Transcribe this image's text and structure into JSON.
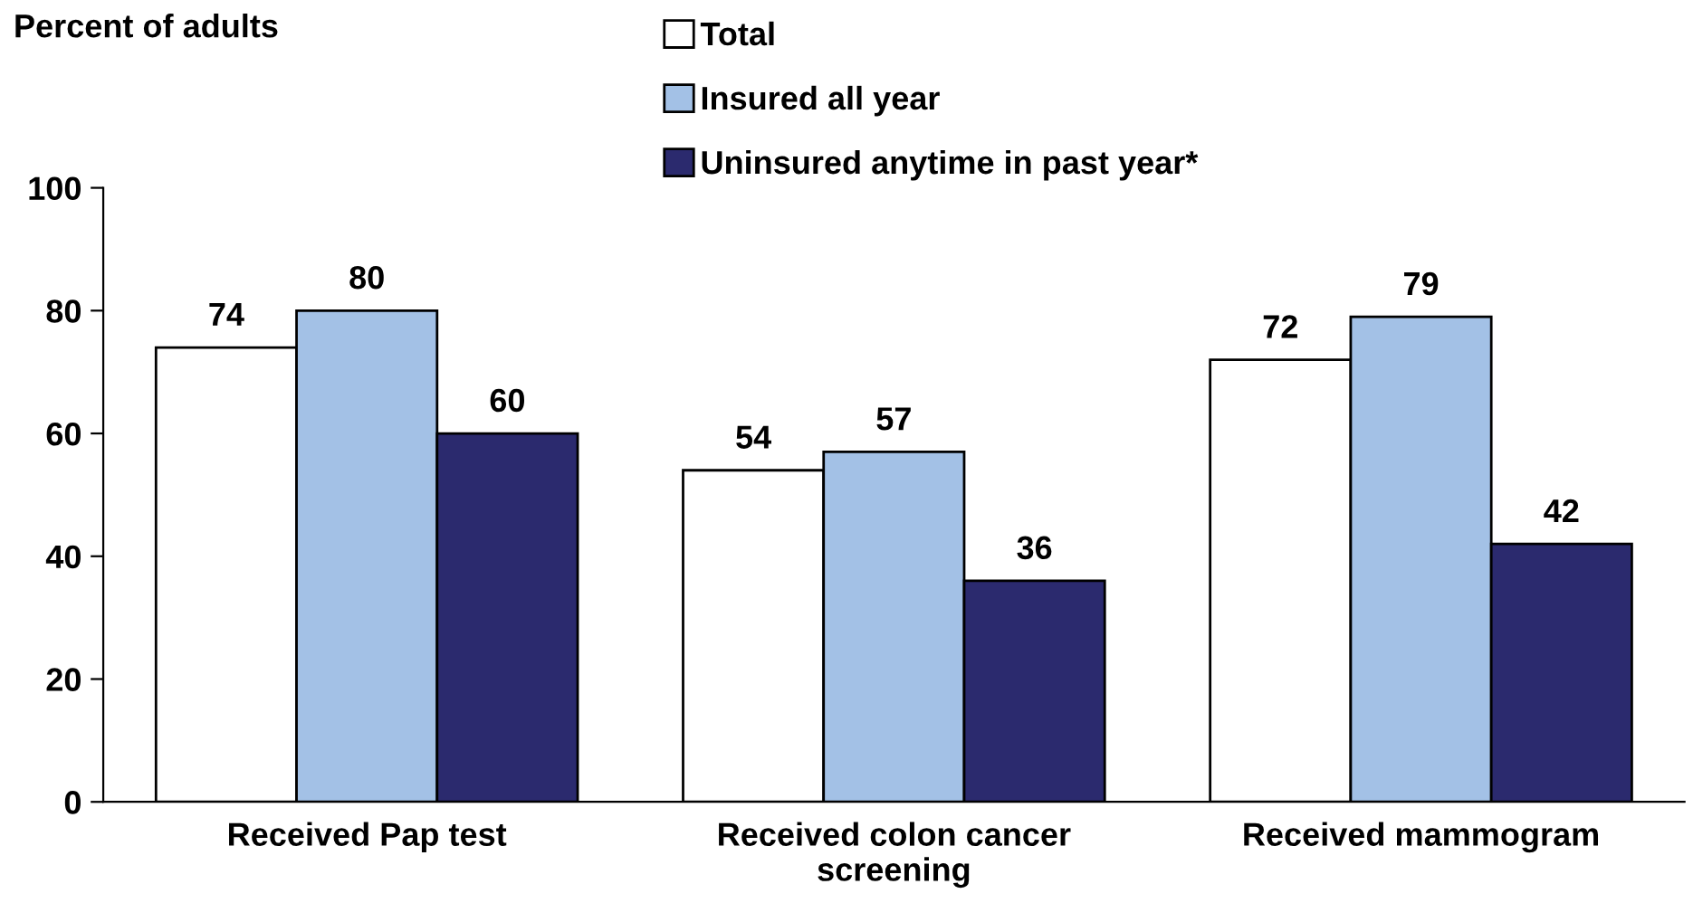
{
  "chart_data": {
    "type": "bar",
    "ylabel": "Percent of adults",
    "categories": [
      "Received Pap test",
      "Received colon cancer\nscreening",
      "Received mammogram"
    ],
    "series": [
      {
        "name": "Total",
        "color": "#ffffff",
        "values": [
          74,
          54,
          72
        ]
      },
      {
        "name": "Insured all year",
        "color": "#a3c1e6",
        "values": [
          80,
          57,
          79
        ]
      },
      {
        "name": "Uninsured anytime in past year*",
        "color": "#2b2a6e",
        "values": [
          60,
          36,
          42
        ]
      }
    ],
    "ylim": [
      0,
      100
    ],
    "yticks": [
      0,
      20,
      40,
      60,
      80,
      100
    ],
    "grid": false,
    "legend": "top",
    "data_labels": true
  }
}
